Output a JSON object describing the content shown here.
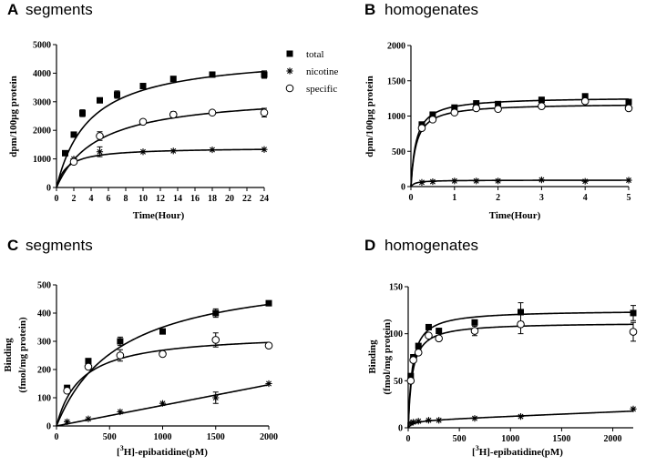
{
  "chart_data": [
    {
      "type": "scatter",
      "panel_letter": "A",
      "title": "segments",
      "xlabel": "Time(Hour)",
      "ylabel": "dpm/100µg protein",
      "xlim": [
        0,
        24
      ],
      "ylim": [
        0,
        5000
      ],
      "xticks": [
        "0",
        "2",
        "4",
        "6",
        "8",
        "10",
        "12",
        "14",
        "16",
        "18",
        "20",
        "22",
        "24"
      ],
      "yticks": [
        "0",
        "1000",
        "2000",
        "3000",
        "4000",
        "5000"
      ],
      "legend": [
        "total",
        "nicotine",
        "specific"
      ],
      "series": [
        {
          "name": "total",
          "marker": "square",
          "x": [
            1,
            2,
            3,
            5,
            7,
            10,
            13.5,
            18,
            24
          ],
          "y": [
            1200,
            1850,
            2600,
            3050,
            3250,
            3550,
            3800,
            3950,
            3950
          ],
          "err": [
            0,
            0,
            120,
            0,
            130,
            0,
            0,
            0,
            130
          ],
          "curve": {
            "bmax": 4700,
            "kd": 3.8
          }
        },
        {
          "name": "nicotine",
          "marker": "star",
          "x": [
            2,
            5,
            10,
            13.5,
            18,
            24
          ],
          "y": [
            1000,
            1250,
            1250,
            1280,
            1320,
            1330
          ],
          "err": [
            0,
            170,
            0,
            0,
            0,
            0
          ],
          "curve": {
            "bmax": 1400,
            "kd": 1.2
          }
        },
        {
          "name": "specific",
          "marker": "circle",
          "x": [
            2,
            5,
            10,
            13.5,
            18,
            24
          ],
          "y": [
            900,
            1800,
            2300,
            2550,
            2620,
            2620
          ],
          "err": [
            0,
            150,
            0,
            100,
            0,
            150
          ],
          "curve": {
            "bmax": 3300,
            "kd": 4.8
          }
        }
      ]
    },
    {
      "type": "scatter",
      "panel_letter": "B",
      "title": "homogenates",
      "xlabel": "Time(Hour)",
      "ylabel": "dpm/100µg protein",
      "xlim": [
        0,
        5
      ],
      "ylim": [
        0,
        2000
      ],
      "xticks": [
        "0",
        "1",
        "2",
        "3",
        "4",
        "5"
      ],
      "yticks": [
        "0",
        "500",
        "1000",
        "1500",
        "2000"
      ],
      "series": [
        {
          "name": "total",
          "marker": "square",
          "x": [
            0.25,
            0.5,
            1,
            1.5,
            2,
            3,
            4,
            5
          ],
          "y": [
            880,
            1020,
            1120,
            1180,
            1170,
            1230,
            1280,
            1200
          ],
          "err": [
            0,
            0,
            0,
            0,
            0,
            0,
            0,
            0
          ],
          "curve": {
            "bmax": 1270,
            "kd": 0.12
          }
        },
        {
          "name": "nicotine",
          "marker": "star",
          "x": [
            0.25,
            0.5,
            1,
            1.5,
            2,
            3,
            4,
            5
          ],
          "y": [
            60,
            70,
            80,
            80,
            80,
            95,
            75,
            90
          ],
          "err": [
            0,
            0,
            0,
            0,
            0,
            0,
            0,
            0
          ],
          "curve": {
            "bmax": 92,
            "kd": 0.1
          }
        },
        {
          "name": "specific",
          "marker": "circle",
          "x": [
            0.25,
            0.5,
            1,
            1.5,
            2,
            3,
            4,
            5
          ],
          "y": [
            830,
            950,
            1050,
            1110,
            1100,
            1140,
            1210,
            1110
          ],
          "err": [
            0,
            0,
            0,
            0,
            0,
            0,
            0,
            0
          ],
          "curve": {
            "bmax": 1180,
            "kd": 0.12
          }
        }
      ]
    },
    {
      "type": "scatter",
      "panel_letter": "C",
      "title": "segments",
      "xlabel": "[3H]-epibatidine(pM)",
      "xlabel_parts": [
        "[",
        "3",
        "H]-epibatidine(pM)"
      ],
      "ylabel": "Binding",
      "ylabel2": "(fmol/mg protein)",
      "xlim": [
        0,
        2000
      ],
      "ylim": [
        0,
        500
      ],
      "xticks": [
        "0",
        "500",
        "1000",
        "1500",
        "2000"
      ],
      "yticks": [
        "0",
        "100",
        "200",
        "300",
        "400",
        "500"
      ],
      "series": [
        {
          "name": "total",
          "marker": "square",
          "x": [
            100,
            300,
            600,
            1000,
            1500,
            2000
          ],
          "y": [
            135,
            230,
            300,
            335,
            400,
            435
          ],
          "err": [
            0,
            0,
            15,
            0,
            15,
            0
          ],
          "curve": {
            "bmax": 560,
            "kd": 600,
            "ns": 0
          }
        },
        {
          "name": "nicotine",
          "marker": "star",
          "x": [
            100,
            300,
            600,
            1000,
            1500,
            2000
          ],
          "y": [
            15,
            25,
            50,
            80,
            100,
            150
          ],
          "err": [
            0,
            0,
            0,
            0,
            20,
            0
          ],
          "curve": {
            "bmax": 0,
            "kd": 1,
            "ns": 0.073
          }
        },
        {
          "name": "specific",
          "marker": "circle",
          "x": [
            100,
            300,
            600,
            1000,
            1500,
            2000
          ],
          "y": [
            125,
            210,
            250,
            255,
            305,
            285
          ],
          "err": [
            0,
            0,
            20,
            0,
            25,
            0
          ],
          "curve": {
            "bmax": 330,
            "kd": 230,
            "ns": 0
          }
        }
      ]
    },
    {
      "type": "scatter",
      "panel_letter": "D",
      "title": "homogenates",
      "xlabel": "[3H]-epibatidine(pM)",
      "xlabel_parts": [
        "[",
        "3",
        "H]-epibatidine(pM)"
      ],
      "ylabel": "Binding",
      "ylabel2": "(fmol/mg protein)",
      "xlim": [
        0,
        2200
      ],
      "ylim": [
        0,
        150
      ],
      "xticks": [
        "0",
        "500",
        "1000",
        "1500",
        "2000"
      ],
      "yticks": [
        "0",
        "50",
        "100",
        "150"
      ],
      "series": [
        {
          "name": "total",
          "marker": "square",
          "x": [
            25,
            50,
            100,
            200,
            300,
            650,
            1100,
            2200
          ],
          "y": [
            55,
            75,
            87,
            107,
            103,
            112,
            123,
            122
          ],
          "err": [
            0,
            0,
            0,
            0,
            0,
            0,
            10,
            8
          ],
          "curve": {
            "bmax": 125,
            "kd": 40,
            "ns": 0
          }
        },
        {
          "name": "nicotine",
          "marker": "star",
          "x": [
            25,
            50,
            100,
            200,
            300,
            650,
            1100,
            2200
          ],
          "y": [
            5,
            6,
            7,
            8,
            8,
            10,
            12,
            20
          ],
          "err": [
            0,
            0,
            0,
            0,
            0,
            0,
            0,
            0
          ],
          "curve": {
            "bmax": 8,
            "kd": 50,
            "ns": 0.0045
          }
        },
        {
          "name": "specific",
          "marker": "circle",
          "x": [
            25,
            50,
            100,
            200,
            300,
            650,
            1100,
            2200
          ],
          "y": [
            50,
            72,
            80,
            98,
            95,
            103,
            110,
            102
          ],
          "err": [
            0,
            0,
            0,
            0,
            0,
            5,
            10,
            10
          ],
          "curve": {
            "bmax": 112,
            "kd": 40,
            "ns": 0
          }
        }
      ]
    }
  ]
}
